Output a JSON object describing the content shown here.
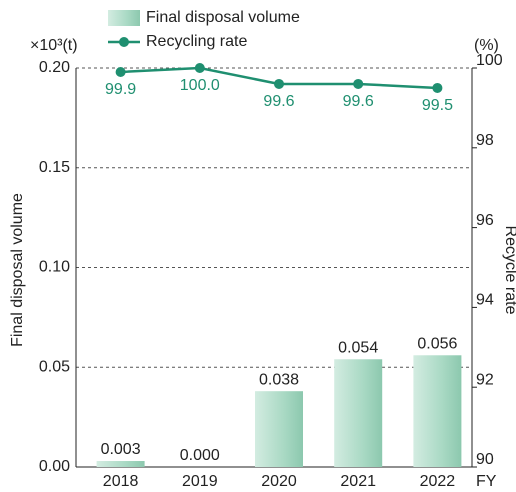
{
  "chart_data": {
    "type": "bar-line",
    "y_unit": "×10³(t)",
    "y2_unit": "(%)",
    "x_unit": "FY",
    "y_label": "Final disposal volume",
    "y2_label": "Recycle rate",
    "categories": [
      "2018",
      "2019",
      "2020",
      "2021",
      "2022"
    ],
    "series": [
      {
        "name": "Final disposal volume",
        "type": "bar",
        "color": "#a9d9c4",
        "values": [
          0.003,
          0.0,
          0.038,
          0.054,
          0.056
        ],
        "value_labels": [
          "0.003",
          "0.000",
          "0.038",
          "0.054",
          "0.056"
        ]
      },
      {
        "name": "Recycling rate",
        "type": "line",
        "axis": "y2",
        "color": "#1f8f70",
        "values": [
          99.9,
          100.0,
          99.6,
          99.6,
          99.5
        ],
        "value_labels": [
          "99.9",
          "100.0",
          "99.6",
          "99.6",
          "99.5"
        ]
      }
    ],
    "ylim": [
      0,
      0.2
    ],
    "yticks": [
      {
        "value": 0,
        "label": "0.00"
      },
      {
        "value": 0.05,
        "label": "0.05"
      },
      {
        "value": 0.1,
        "label": "0.10"
      },
      {
        "value": 0.15,
        "label": "0.15"
      },
      {
        "value": 0.2,
        "label": "0.20"
      }
    ],
    "y2lim": [
      90,
      100
    ],
    "y2ticks": [
      90,
      92,
      94,
      96,
      98,
      100
    ],
    "grid": true
  }
}
